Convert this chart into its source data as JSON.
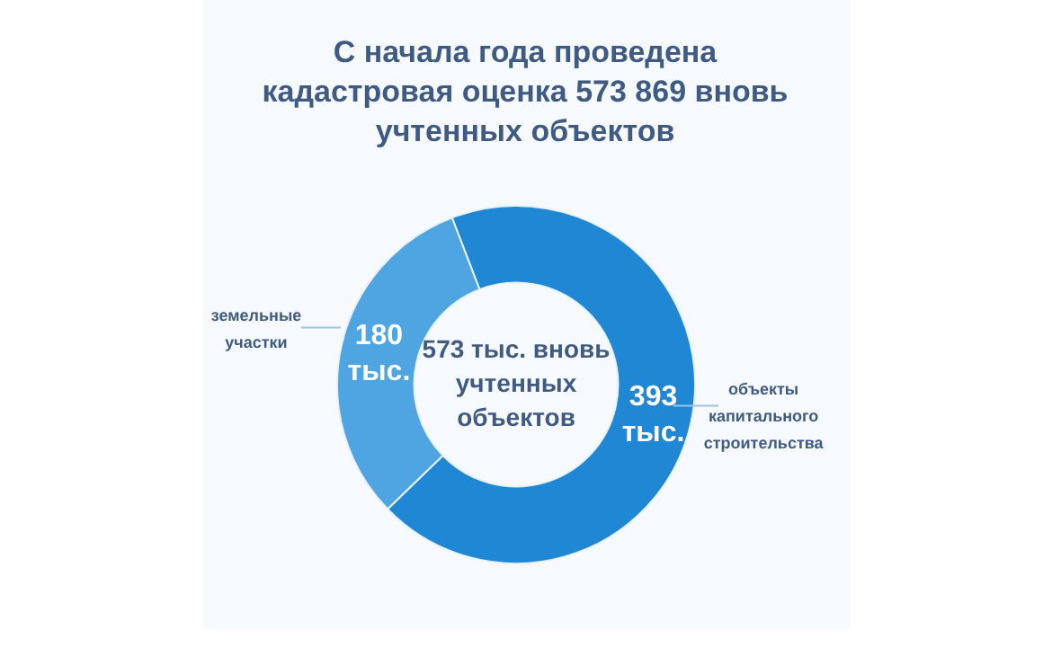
{
  "chart_data": {
    "type": "donut",
    "title": "С начала года проведена кадастровая оценка 573 869 вновь учтенных объектов",
    "categories": [
      "объекты капитального строительства",
      "земельные участки"
    ],
    "values": [
      393,
      180
    ],
    "colors": [
      "#2087d4",
      "#4ea5e2"
    ],
    "value_labels": [
      "393 тыс.",
      "180 тыс."
    ],
    "annotations": [
      "573 тыс. вновь учтенных объектов"
    ]
  }
}
